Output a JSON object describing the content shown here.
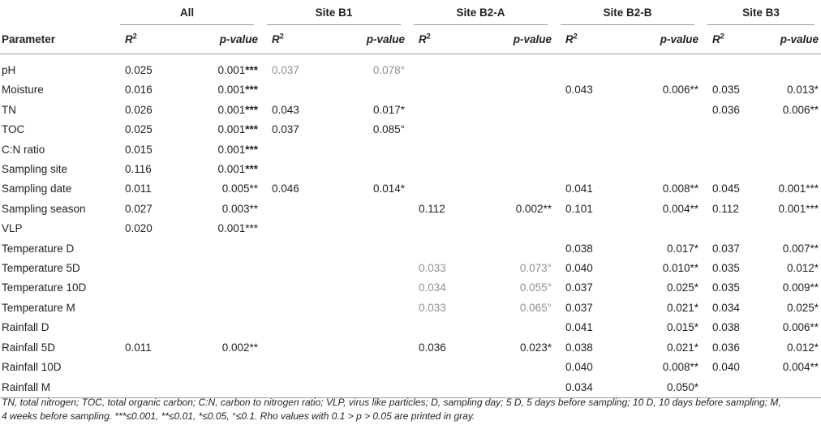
{
  "table": {
    "param_header": "Parameter",
    "r2_label": "R",
    "r2_sup": "2",
    "pvalue_label": "p-value",
    "groups": [
      "All",
      "Site B1",
      "Site B2-A",
      "Site B2-B",
      "Site B3"
    ],
    "rows": [
      {
        "name": "pH",
        "cells": [
          {
            "r2": "0.025",
            "p": "0.001",
            "stars": "***",
            "sb": true
          },
          {
            "r2": "0.037",
            "p": "0.078",
            "stars": "°",
            "gray": true
          },
          {
            "r2": "",
            "p": "",
            "stars": ""
          },
          {
            "r2": "",
            "p": "",
            "stars": ""
          },
          {
            "r2": "",
            "p": "",
            "stars": ""
          }
        ]
      },
      {
        "name": "Moisture",
        "cells": [
          {
            "r2": "0.016",
            "p": "0.001",
            "stars": "***",
            "sb": true
          },
          {
            "r2": "",
            "p": "",
            "stars": ""
          },
          {
            "r2": "",
            "p": "",
            "stars": ""
          },
          {
            "r2": "0.043",
            "p": "0.006",
            "stars": "**"
          },
          {
            "r2": "0.035",
            "p": "0.013",
            "stars": "*"
          }
        ]
      },
      {
        "name": "TN",
        "cells": [
          {
            "r2": "0.026",
            "p": "0.001",
            "stars": "***",
            "sb": true
          },
          {
            "r2": "0.043",
            "p": "0.017",
            "stars": "*"
          },
          {
            "r2": "",
            "p": "",
            "stars": ""
          },
          {
            "r2": "",
            "p": "",
            "stars": ""
          },
          {
            "r2": "0.036",
            "p": "0.006",
            "stars": "**"
          }
        ]
      },
      {
        "name": "TOC",
        "cells": [
          {
            "r2": "0.025",
            "p": "0.001",
            "stars": "***",
            "sb": true
          },
          {
            "r2": "0.037",
            "p": "0.085",
            "stars": "°"
          },
          {
            "r2": "",
            "p": "",
            "stars": ""
          },
          {
            "r2": "",
            "p": "",
            "stars": ""
          },
          {
            "r2": "",
            "p": "",
            "stars": ""
          }
        ]
      },
      {
        "name": "C:N ratio",
        "cells": [
          {
            "r2": "0.015",
            "p": "0.001",
            "stars": "***",
            "sb": true
          },
          {
            "r2": "",
            "p": "",
            "stars": ""
          },
          {
            "r2": "",
            "p": "",
            "stars": ""
          },
          {
            "r2": "",
            "p": "",
            "stars": ""
          },
          {
            "r2": "",
            "p": "",
            "stars": ""
          }
        ]
      },
      {
        "name": "Sampling site",
        "cells": [
          {
            "r2": "0.116",
            "p": "0.001",
            "stars": "***",
            "sb": true
          },
          {
            "r2": "",
            "p": "",
            "stars": ""
          },
          {
            "r2": "",
            "p": "",
            "stars": ""
          },
          {
            "r2": "",
            "p": "",
            "stars": ""
          },
          {
            "r2": "",
            "p": "",
            "stars": ""
          }
        ]
      },
      {
        "name": "Sampling date",
        "cells": [
          {
            "r2": "0.011",
            "p": "0.005",
            "stars": "**"
          },
          {
            "r2": "0.046",
            "p": "0.014",
            "stars": "*"
          },
          {
            "r2": "",
            "p": "",
            "stars": ""
          },
          {
            "r2": "0.041",
            "p": "0.008",
            "stars": "**"
          },
          {
            "r2": "0.045",
            "p": "0.001",
            "stars": "***"
          }
        ]
      },
      {
        "name": "Sampling season",
        "cells": [
          {
            "r2": "0.027",
            "p": "0.003",
            "stars": "**"
          },
          {
            "r2": "",
            "p": "",
            "stars": ""
          },
          {
            "r2": "0.112",
            "p": "0.002",
            "stars": "**"
          },
          {
            "r2": "0.101",
            "p": "0.004",
            "stars": "**"
          },
          {
            "r2": "0.112",
            "p": "0.001",
            "stars": "***"
          }
        ]
      },
      {
        "name": "VLP",
        "cells": [
          {
            "r2": "0.020",
            "p": "0.001",
            "stars": "***"
          },
          {
            "r2": "",
            "p": "",
            "stars": ""
          },
          {
            "r2": "",
            "p": "",
            "stars": ""
          },
          {
            "r2": "",
            "p": "",
            "stars": ""
          },
          {
            "r2": "",
            "p": "",
            "stars": ""
          }
        ]
      },
      {
        "name": "Temperature D",
        "cells": [
          {
            "r2": "",
            "p": "",
            "stars": ""
          },
          {
            "r2": "",
            "p": "",
            "stars": ""
          },
          {
            "r2": "",
            "p": "",
            "stars": ""
          },
          {
            "r2": "0.038",
            "p": "0.017",
            "stars": "*"
          },
          {
            "r2": "0.037",
            "p": "0.007",
            "stars": "**"
          }
        ]
      },
      {
        "name": "Temperature 5D",
        "cells": [
          {
            "r2": "",
            "p": "",
            "stars": ""
          },
          {
            "r2": "",
            "p": "",
            "stars": ""
          },
          {
            "r2": "0.033",
            "p": "0.073",
            "stars": "°",
            "gray": true
          },
          {
            "r2": "0.040",
            "p": "0.010",
            "stars": "**"
          },
          {
            "r2": "0.035",
            "p": "0.012",
            "stars": "*"
          }
        ]
      },
      {
        "name": "Temperature 10D",
        "cells": [
          {
            "r2": "",
            "p": "",
            "stars": ""
          },
          {
            "r2": "",
            "p": "",
            "stars": ""
          },
          {
            "r2": "0.034",
            "p": "0.055",
            "stars": "°",
            "gray": true
          },
          {
            "r2": "0.037",
            "p": "0.025",
            "stars": "*"
          },
          {
            "r2": "0.035",
            "p": "0.009",
            "stars": "**"
          }
        ]
      },
      {
        "name": "Temperature M",
        "cells": [
          {
            "r2": "",
            "p": "",
            "stars": ""
          },
          {
            "r2": "",
            "p": "",
            "stars": ""
          },
          {
            "r2": "0.033",
            "p": "0.065",
            "stars": "°",
            "gray": true
          },
          {
            "r2": "0.037",
            "p": "0.021",
            "stars": "*"
          },
          {
            "r2": "0.034",
            "p": "0.025",
            "stars": "*"
          }
        ]
      },
      {
        "name": "Rainfall D",
        "cells": [
          {
            "r2": "",
            "p": "",
            "stars": ""
          },
          {
            "r2": "",
            "p": "",
            "stars": ""
          },
          {
            "r2": "",
            "p": "",
            "stars": ""
          },
          {
            "r2": "0.041",
            "p": "0.015",
            "stars": "*"
          },
          {
            "r2": "0.038",
            "p": "0.006",
            "stars": "**"
          }
        ]
      },
      {
        "name": "Rainfall 5D",
        "cells": [
          {
            "r2": "0.011",
            "p": "0.002",
            "stars": "**"
          },
          {
            "r2": "",
            "p": "",
            "stars": ""
          },
          {
            "r2": "0.036",
            "p": "0.023",
            "stars": "*"
          },
          {
            "r2": "0.038",
            "p": "0.021",
            "stars": "*"
          },
          {
            "r2": "0.036",
            "p": "0.012",
            "stars": "*"
          }
        ]
      },
      {
        "name": "Rainfall 10D",
        "cells": [
          {
            "r2": "",
            "p": "",
            "stars": ""
          },
          {
            "r2": "",
            "p": "",
            "stars": ""
          },
          {
            "r2": "",
            "p": "",
            "stars": ""
          },
          {
            "r2": "0.040",
            "p": "0.008",
            "stars": "**"
          },
          {
            "r2": "0.040",
            "p": "0.004",
            "stars": "**"
          }
        ]
      },
      {
        "name": "Rainfall M",
        "cells": [
          {
            "r2": "",
            "p": "",
            "stars": ""
          },
          {
            "r2": "",
            "p": "",
            "stars": ""
          },
          {
            "r2": "",
            "p": "",
            "stars": ""
          },
          {
            "r2": "0.034",
            "p": "0.050",
            "stars": "*"
          },
          {
            "r2": "",
            "p": "",
            "stars": ""
          }
        ]
      }
    ]
  },
  "footnote": {
    "line1": "TN, total nitrogen; TOC, total organic carbon; C:N, carbon to nitrogen ratio; VLP, virus like particles; D, sampling day; 5 D, 5 days before sampling; 10 D, 10 days before sampling; M,",
    "line2": "4 weeks before sampling. ***≤0.001, **≤0.01, *≤0.05, °≤0.1. Rho values with 0.1 > p > 0.05 are printed in gray."
  }
}
